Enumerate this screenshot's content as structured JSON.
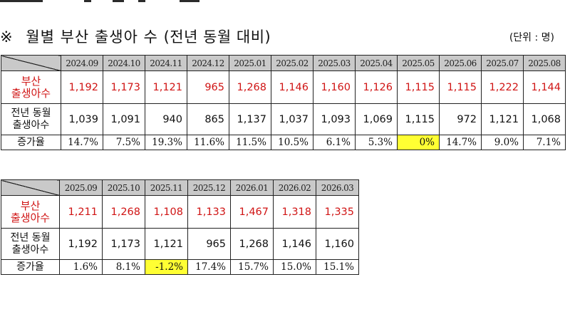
{
  "heading": {
    "prefix": "※",
    "title": "월별 부산 출생아 수",
    "subtitle": "(전년 동월 대비)",
    "unit": "(단위 : 명)"
  },
  "row_labels": {
    "busan_line1": "부산",
    "busan_line2": "출생아수",
    "prev_line1": "전년 동월",
    "prev_line2": "출생아수",
    "rate": "증가율"
  },
  "colors": {
    "red_text": "#d01414",
    "header_fill": "#c9c9c9",
    "highlight": "#ffff33"
  },
  "table1": {
    "months": [
      "2024.09",
      "2024.10",
      "2024.11",
      "2024.12",
      "2025.01",
      "2025.02",
      "2025.03",
      "2025.04",
      "2025.05",
      "2025.06",
      "2025.07",
      "2025.08"
    ],
    "busan": [
      "1,192",
      "1,173",
      "1,121",
      "965",
      "1,268",
      "1,146",
      "1,160",
      "1,126",
      "1,115",
      "1,115",
      "1,222",
      "1,144"
    ],
    "prev_year": [
      "1,039",
      "1,091",
      "940",
      "865",
      "1,137",
      "1,037",
      "1,093",
      "1,069",
      "1,115",
      "972",
      "1,121",
      "1,068"
    ],
    "rate": [
      "14.7%",
      "7.5%",
      "19.3%",
      "11.6%",
      "11.5%",
      "10.5%",
      "6.1%",
      "5.3%",
      "0%",
      "14.7%",
      "9.0%",
      "7.1%"
    ],
    "highlight_index": 8
  },
  "table2": {
    "months": [
      "2025.09",
      "2025.10",
      "2025.11",
      "2025.12",
      "2026.01",
      "2026.02",
      "2026.03"
    ],
    "busan": [
      "1,211",
      "1,268",
      "1,108",
      "1,133",
      "1,467",
      "1,318",
      "1,335"
    ],
    "prev_year": [
      "1,192",
      "1,173",
      "1,121",
      "965",
      "1,268",
      "1,146",
      "1,160"
    ],
    "rate": [
      "1.6%",
      "8.1%",
      "-1.2%",
      "17.4%",
      "15.7%",
      "15.0%",
      "15.1%"
    ],
    "highlight_index": 2
  }
}
